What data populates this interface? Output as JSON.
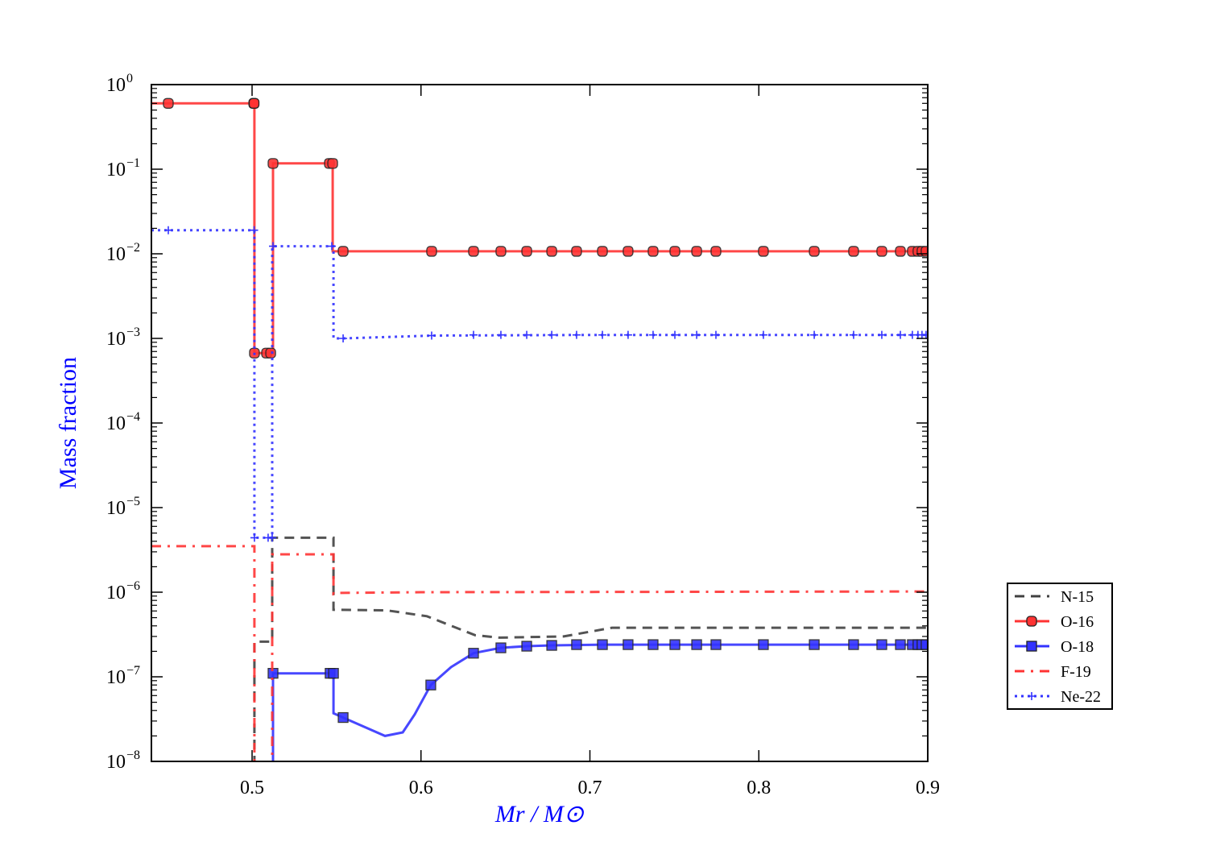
{
  "chart_data": {
    "type": "line",
    "title": "",
    "xlabel": "Mr / M⊙",
    "ylabel": "Mass fraction",
    "xlim": [
      0.4404,
      0.9
    ],
    "ylim": [
      1e-08,
      1
    ],
    "yscale": "log",
    "grid": false,
    "legend_position": "right, outside",
    "x_ticks": [
      "0.5",
      "0.6",
      "0.7",
      "0.8",
      "0.9"
    ],
    "x_tick_values": [
      0.5,
      0.6,
      0.7,
      0.8,
      0.9
    ],
    "y_ticks": [
      {
        "base": "10",
        "exp": "0"
      },
      {
        "base": "10",
        "exp": "−1"
      },
      {
        "base": "10",
        "exp": "−2"
      },
      {
        "base": "10",
        "exp": "−3"
      },
      {
        "base": "10",
        "exp": "−4"
      },
      {
        "base": "10",
        "exp": "−5"
      },
      {
        "base": "10",
        "exp": "−6"
      },
      {
        "base": "10",
        "exp": "−7"
      },
      {
        "base": "10",
        "exp": "−8"
      }
    ],
    "y_tick_exponents": [
      0,
      -1,
      -2,
      -3,
      -4,
      -5,
      -6,
      -7,
      -8
    ],
    "series": [
      {
        "name": "N-15",
        "color": "#404040",
        "style": "dashed",
        "marker": "none",
        "points": [
          [
            0.5014,
            1e-09
          ],
          [
            0.5014,
            2.6e-07
          ],
          [
            0.5052,
            2.6e-07
          ],
          [
            0.5119,
            2.6e-07
          ],
          [
            0.5119,
            4.4e-06
          ],
          [
            0.5482,
            4.4e-06
          ],
          [
            0.5482,
            6.2e-07
          ],
          [
            0.5796,
            6.1e-07
          ],
          [
            0.6035,
            5.2e-07
          ],
          [
            0.6321,
            3.1e-07
          ],
          [
            0.6464,
            2.9e-07
          ],
          [
            0.6845,
            3e-07
          ],
          [
            0.7131,
            3.8e-07
          ],
          [
            0.9,
            3.8e-07
          ]
        ],
        "markers": []
      },
      {
        "name": "O-16",
        "color": "#ff3333",
        "style": "solid",
        "marker": "circle",
        "points": [
          [
            0.4404,
            0.6
          ],
          [
            0.5014,
            0.6
          ],
          [
            0.5014,
            0.00067
          ],
          [
            0.5124,
            0.00067
          ],
          [
            0.5124,
            0.117
          ],
          [
            0.5477,
            0.117
          ],
          [
            0.5477,
            0.0107
          ],
          [
            0.9,
            0.0107
          ]
        ],
        "markers": [
          [
            0.4504,
            0.6
          ],
          [
            0.501,
            0.6
          ],
          [
            0.5012,
            0.6
          ],
          [
            0.5014,
            0.00067
          ],
          [
            0.5086,
            0.00067
          ],
          [
            0.511,
            0.00067
          ],
          [
            0.5124,
            0.117
          ],
          [
            0.5458,
            0.117
          ],
          [
            0.5477,
            0.117
          ],
          [
            0.5539,
            0.0107
          ],
          [
            0.6063,
            0.0107
          ],
          [
            0.6311,
            0.0107
          ],
          [
            0.6473,
            0.0107
          ],
          [
            0.6626,
            0.0107
          ],
          [
            0.6774,
            0.0107
          ],
          [
            0.6921,
            0.0107
          ],
          [
            0.7074,
            0.0107
          ],
          [
            0.7226,
            0.0107
          ],
          [
            0.7374,
            0.0107
          ],
          [
            0.7503,
            0.0107
          ],
          [
            0.7632,
            0.0107
          ],
          [
            0.7746,
            0.0107
          ],
          [
            0.8027,
            0.0107
          ],
          [
            0.8328,
            0.0107
          ],
          [
            0.8561,
            0.0107
          ],
          [
            0.8728,
            0.0107
          ],
          [
            0.8838,
            0.0107
          ],
          [
            0.8909,
            0.0107
          ],
          [
            0.8942,
            0.0107
          ],
          [
            0.8966,
            0.0107
          ],
          [
            0.899,
            0.0107
          ]
        ]
      },
      {
        "name": "O-18",
        "color": "#3333ff",
        "style": "solid",
        "marker": "square",
        "points": [
          [
            0.5124,
            1e-09
          ],
          [
            0.5124,
            1.1e-07
          ],
          [
            0.5482,
            1.1e-07
          ],
          [
            0.5482,
            3.7e-08
          ],
          [
            0.5539,
            3.3e-08
          ],
          [
            0.5787,
            2e-08
          ],
          [
            0.5892,
            2.2e-08
          ],
          [
            0.5963,
            3.6e-08
          ],
          [
            0.6058,
            8e-08
          ],
          [
            0.6178,
            1.3e-07
          ],
          [
            0.6311,
            1.9e-07
          ],
          [
            0.6473,
            2.2e-07
          ],
          [
            0.6626,
            2.3e-07
          ],
          [
            0.6774,
            2.35e-07
          ],
          [
            0.7074,
            2.4e-07
          ],
          [
            0.9,
            2.4e-07
          ]
        ],
        "markers": [
          [
            0.5124,
            1.1e-07
          ],
          [
            0.5462,
            1.1e-07
          ],
          [
            0.5482,
            1.1e-07
          ],
          [
            0.5539,
            3.3e-08
          ],
          [
            0.6058,
            8e-08
          ],
          [
            0.6311,
            1.9e-07
          ],
          [
            0.6473,
            2.2e-07
          ],
          [
            0.6626,
            2.3e-07
          ],
          [
            0.6774,
            2.35e-07
          ],
          [
            0.6921,
            2.4e-07
          ],
          [
            0.7074,
            2.4e-07
          ],
          [
            0.7226,
            2.4e-07
          ],
          [
            0.7374,
            2.4e-07
          ],
          [
            0.7503,
            2.4e-07
          ],
          [
            0.7632,
            2.4e-07
          ],
          [
            0.7746,
            2.4e-07
          ],
          [
            0.8027,
            2.4e-07
          ],
          [
            0.8328,
            2.4e-07
          ],
          [
            0.8561,
            2.4e-07
          ],
          [
            0.8728,
            2.4e-07
          ],
          [
            0.8838,
            2.4e-07
          ],
          [
            0.8909,
            2.4e-07
          ],
          [
            0.8942,
            2.4e-07
          ],
          [
            0.8966,
            2.4e-07
          ],
          [
            0.899,
            2.4e-07
          ]
        ]
      },
      {
        "name": "F-19",
        "color": "#ff3333",
        "style": "dashdot",
        "marker": "none",
        "points": [
          [
            0.4404,
            3.5e-06
          ],
          [
            0.5014,
            3.5e-06
          ],
          [
            0.5014,
            1e-09
          ]
        ],
        "points2": [
          [
            0.5119,
            1e-09
          ],
          [
            0.5119,
            2.8e-06
          ],
          [
            0.5482,
            2.8e-06
          ],
          [
            0.5482,
            9.5e-07
          ],
          [
            0.551,
            9.8e-07
          ],
          [
            0.6,
            1e-06
          ],
          [
            0.9,
            1.02e-06
          ]
        ],
        "markers": []
      },
      {
        "name": "Ne-22",
        "color": "#3333ff",
        "style": "dotted",
        "marker": "plus",
        "points": [
          [
            0.4404,
            0.019
          ],
          [
            0.5014,
            0.019
          ],
          [
            0.5014,
            4.4e-06
          ],
          [
            0.5119,
            4.4e-06
          ],
          [
            0.5119,
            0.0123
          ],
          [
            0.5482,
            0.0123
          ],
          [
            0.5482,
            0.001
          ],
          [
            0.5539,
            0.001
          ],
          [
            0.6063,
            0.00108
          ],
          [
            0.7,
            0.0011
          ],
          [
            0.9,
            0.0011
          ]
        ],
        "markers": [
          [
            0.4504,
            0.019
          ],
          [
            0.5012,
            0.019
          ],
          [
            0.5014,
            4.4e-06
          ],
          [
            0.5095,
            4.4e-06
          ],
          [
            0.5119,
            4.4e-06
          ],
          [
            0.5124,
            0.0123
          ],
          [
            0.5472,
            0.0123
          ],
          [
            0.5539,
            0.001
          ],
          [
            0.6063,
            0.00108
          ],
          [
            0.6311,
            0.0011
          ],
          [
            0.6473,
            0.0011
          ],
          [
            0.6626,
            0.0011
          ],
          [
            0.6774,
            0.0011
          ],
          [
            0.6921,
            0.0011
          ],
          [
            0.7074,
            0.0011
          ],
          [
            0.7226,
            0.0011
          ],
          [
            0.7374,
            0.0011
          ],
          [
            0.7503,
            0.0011
          ],
          [
            0.7632,
            0.0011
          ],
          [
            0.7746,
            0.0011
          ],
          [
            0.8027,
            0.0011
          ],
          [
            0.8328,
            0.0011
          ],
          [
            0.8561,
            0.0011
          ],
          [
            0.8728,
            0.0011
          ],
          [
            0.8838,
            0.0011
          ],
          [
            0.8909,
            0.0011
          ],
          [
            0.8942,
            0.0011
          ],
          [
            0.8966,
            0.0011
          ],
          [
            0.899,
            0.0011
          ]
        ]
      }
    ]
  }
}
